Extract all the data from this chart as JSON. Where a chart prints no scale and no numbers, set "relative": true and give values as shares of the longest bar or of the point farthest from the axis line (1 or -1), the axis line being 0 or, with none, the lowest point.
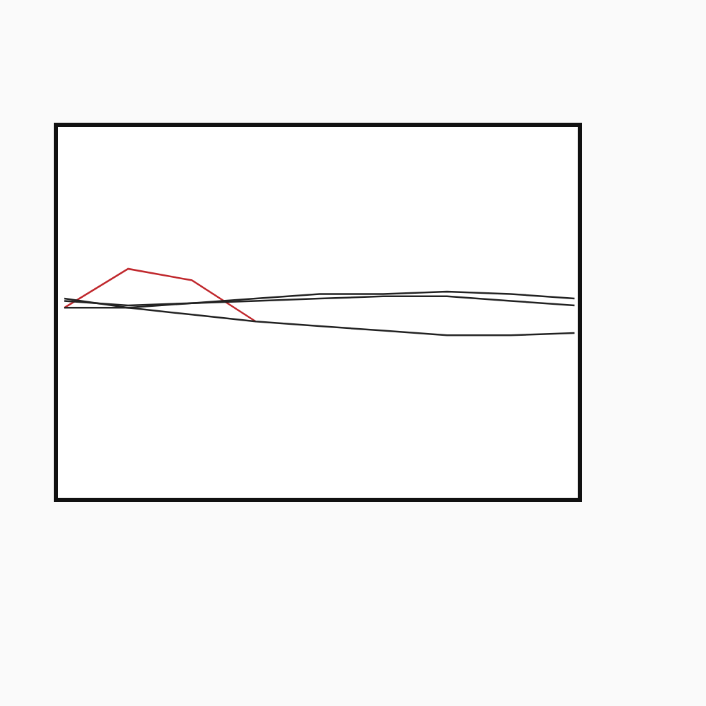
{
  "chart_data": {
    "type": "line",
    "relative": true,
    "categories": [
      null,
      null,
      null,
      null,
      null,
      null,
      null,
      null,
      null
    ],
    "series": [
      {
        "color": "#c0282d",
        "values": [
          0.83,
          1.0,
          0.95,
          0.77,
          null,
          null,
          null,
          null,
          null
        ]
      },
      {
        "color": "#222222",
        "values": [
          0.87,
          0.83,
          0.85,
          0.87,
          0.89,
          0.89,
          0.9,
          0.89,
          0.87
        ]
      },
      {
        "color": "#222222",
        "values": [
          0.86,
          0.84,
          0.85,
          0.86,
          0.87,
          0.88,
          0.88,
          0.86,
          0.84
        ]
      },
      {
        "color": "#222222",
        "values": [
          0.83,
          0.83,
          0.8,
          0.77,
          0.75,
          0.73,
          0.71,
          0.71,
          0.72
        ]
      }
    ],
    "marker": "none",
    "line_style": "solid"
  }
}
